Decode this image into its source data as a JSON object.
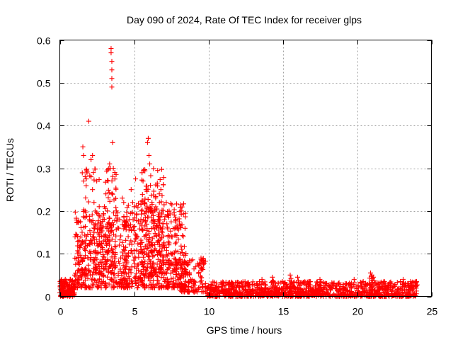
{
  "chart_data": {
    "type": "scatter",
    "title": "Day 090 of 2024, Rate Of TEC Index for receiver glps",
    "xlabel": "GPS time / hours",
    "ylabel": "ROTI / TECUs",
    "xlim": [
      0,
      25
    ],
    "ylim": [
      0,
      0.6
    ],
    "xticks": [
      0,
      5,
      10,
      15,
      20,
      25
    ],
    "xtick_labels": [
      "0",
      "5",
      "10",
      "15",
      "20",
      "25"
    ],
    "yticks": [
      0,
      0.1,
      0.2,
      0.3,
      0.4,
      0.5,
      0.6
    ],
    "ytick_labels": [
      "0",
      "0.1",
      "0.2",
      "0.3",
      "0.4",
      "0.5",
      "0.6"
    ],
    "grid": true,
    "marker": "+",
    "series": [
      {
        "name": "ROTI",
        "color": "#ff0000",
        "points": [
          [
            0.1,
            0.02
          ],
          [
            0.2,
            0.01
          ],
          [
            0.3,
            0.03
          ],
          [
            0.4,
            0.015
          ],
          [
            0.5,
            0.025
          ],
          [
            0.6,
            0.01
          ],
          [
            0.7,
            0.04
          ],
          [
            0.8,
            0.02
          ],
          [
            0.9,
            0.03
          ],
          [
            1.0,
            0.05
          ],
          [
            1.1,
            0.02
          ],
          [
            1.2,
            0.1
          ],
          [
            1.3,
            0.08
          ],
          [
            1.4,
            0.12
          ],
          [
            1.5,
            0.15
          ],
          [
            1.55,
            0.35
          ],
          [
            1.6,
            0.27
          ],
          [
            1.6,
            0.33
          ],
          [
            1.7,
            0.2
          ],
          [
            1.8,
            0.14
          ],
          [
            1.9,
            0.09
          ],
          [
            1.95,
            0.41
          ],
          [
            2.0,
            0.18
          ],
          [
            2.1,
            0.28
          ],
          [
            2.1,
            0.32
          ],
          [
            2.2,
            0.33
          ],
          [
            2.2,
            0.25
          ],
          [
            2.3,
            0.22
          ],
          [
            2.3,
            0.15
          ],
          [
            2.4,
            0.17
          ],
          [
            2.5,
            0.1
          ],
          [
            2.6,
            0.12
          ],
          [
            2.7,
            0.08
          ],
          [
            2.8,
            0.14
          ],
          [
            2.9,
            0.18
          ],
          [
            3.0,
            0.21
          ],
          [
            3.1,
            0.24
          ],
          [
            3.2,
            0.2
          ],
          [
            3.25,
            0.27
          ],
          [
            3.3,
            0.3
          ],
          [
            3.35,
            0.31
          ],
          [
            3.4,
            0.3
          ],
          [
            3.45,
            0.58
          ],
          [
            3.45,
            0.57
          ],
          [
            3.5,
            0.55
          ],
          [
            3.5,
            0.53
          ],
          [
            3.5,
            0.51
          ],
          [
            3.5,
            0.49
          ],
          [
            3.55,
            0.36
          ],
          [
            3.6,
            0.3
          ],
          [
            3.7,
            0.29
          ],
          [
            3.8,
            0.2
          ],
          [
            3.9,
            0.16
          ],
          [
            4.0,
            0.12
          ],
          [
            4.1,
            0.09
          ],
          [
            4.2,
            0.23
          ],
          [
            4.3,
            0.22
          ],
          [
            4.4,
            0.1
          ],
          [
            4.5,
            0.07
          ],
          [
            4.6,
            0.14
          ],
          [
            4.7,
            0.18
          ],
          [
            4.8,
            0.25
          ],
          [
            4.9,
            0.22
          ],
          [
            5.0,
            0.21
          ],
          [
            5.1,
            0.275
          ],
          [
            5.2,
            0.14
          ],
          [
            5.3,
            0.1
          ],
          [
            5.4,
            0.17
          ],
          [
            5.5,
            0.2
          ],
          [
            5.6,
            0.27
          ],
          [
            5.7,
            0.22
          ],
          [
            5.8,
            0.25
          ],
          [
            5.9,
            0.36
          ],
          [
            5.95,
            0.37
          ],
          [
            6.0,
            0.33
          ],
          [
            6.05,
            0.31
          ],
          [
            6.1,
            0.26
          ],
          [
            6.2,
            0.22
          ],
          [
            6.3,
            0.18
          ],
          [
            6.4,
            0.2
          ],
          [
            6.5,
            0.16
          ],
          [
            6.6,
            0.13
          ],
          [
            6.7,
            0.22
          ],
          [
            6.8,
            0.25
          ],
          [
            6.9,
            0.15
          ],
          [
            7.0,
            0.12
          ],
          [
            7.2,
            0.17
          ],
          [
            7.4,
            0.14
          ],
          [
            7.6,
            0.1
          ],
          [
            7.8,
            0.18
          ],
          [
            8.0,
            0.08
          ],
          [
            8.2,
            0.11
          ],
          [
            8.4,
            0.06
          ],
          [
            8.6,
            0.05
          ],
          [
            8.8,
            0.04
          ],
          [
            9.0,
            0.03
          ],
          [
            9.5,
            0.09
          ],
          [
            9.6,
            0.08
          ],
          [
            9.8,
            0.03
          ],
          [
            10.2,
            0.02
          ]
        ],
        "dense_regions": [
          {
            "x": [
              0.0,
              1.0
            ],
            "y": [
              0.0,
              0.04
            ],
            "count": 140
          },
          {
            "x": [
              1.0,
              4.5
            ],
            "y": [
              0.02,
              0.2
            ],
            "count": 320
          },
          {
            "x": [
              1.5,
              3.8
            ],
            "y": [
              0.05,
              0.3
            ],
            "count": 160
          },
          {
            "x": [
              4.3,
              8.5
            ],
            "y": [
              0.02,
              0.22
            ],
            "count": 520
          },
          {
            "x": [
              5.5,
              7.0
            ],
            "y": [
              0.05,
              0.3
            ],
            "count": 130
          },
          {
            "x": [
              8.0,
              9.8
            ],
            "y": [
              0.01,
              0.09
            ],
            "count": 120
          },
          {
            "x": [
              9.8,
              24.0
            ],
            "y": [
              0.0,
              0.035
            ],
            "count": 1100
          }
        ],
        "late_bumps": [
          [
            13.6,
            0.04
          ],
          [
            14.3,
            0.045
          ],
          [
            15.5,
            0.05
          ],
          [
            16.0,
            0.045
          ],
          [
            16.8,
            0.035
          ],
          [
            17.5,
            0.04
          ],
          [
            19.2,
            0.03
          ],
          [
            19.8,
            0.04
          ],
          [
            20.9,
            0.055
          ],
          [
            21.0,
            0.05
          ],
          [
            21.1,
            0.045
          ],
          [
            21.8,
            0.035
          ],
          [
            23.1,
            0.04
          ],
          [
            23.6,
            0.035
          ],
          [
            24.0,
            0.035
          ]
        ]
      }
    ]
  }
}
